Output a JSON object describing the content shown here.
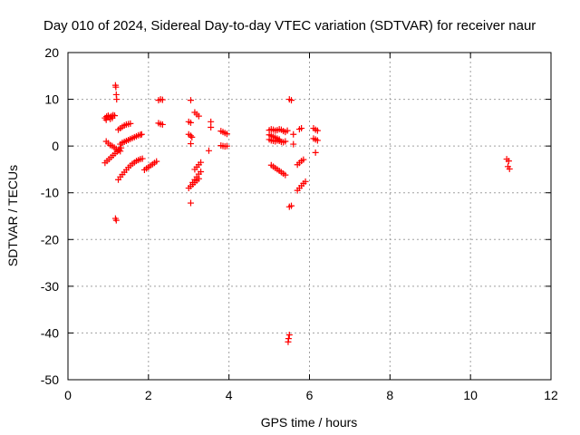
{
  "chart_data": {
    "type": "scatter",
    "title": "Day 010 of 2024, Sidereal Day-to-day VTEC variation (SDTVAR) for receiver naur",
    "xlabel": "GPS time / hours",
    "ylabel": "SDTVAR / TECUs",
    "xlim": [
      0,
      12
    ],
    "ylim": [
      -50,
      20
    ],
    "xticks": [
      0,
      2,
      4,
      6,
      8,
      10,
      12
    ],
    "yticks": [
      -50,
      -40,
      -30,
      -20,
      -10,
      0,
      10,
      20
    ],
    "grid": true,
    "marker": "+",
    "marker_color": "#ff0000",
    "series": [
      {
        "name": "SDTVAR",
        "points": [
          [
            0.92,
            6.0
          ],
          [
            0.96,
            6.3
          ],
          [
            1.0,
            6.5
          ],
          [
            1.04,
            6.2
          ],
          [
            1.08,
            6.4
          ],
          [
            1.12,
            6.6
          ],
          [
            1.16,
            6.5
          ],
          [
            0.95,
            5.6
          ],
          [
            1.05,
            5.8
          ],
          [
            1.1,
            6.0
          ],
          [
            1.18,
            13.0
          ],
          [
            1.19,
            12.6
          ],
          [
            1.2,
            11.0
          ],
          [
            1.21,
            10.0
          ],
          [
            0.95,
            1.0
          ],
          [
            1.0,
            0.6
          ],
          [
            1.05,
            0.2
          ],
          [
            1.1,
            0.0
          ],
          [
            1.15,
            -0.3
          ],
          [
            1.2,
            -0.6
          ],
          [
            1.25,
            -0.9
          ],
          [
            1.3,
            -1.1
          ],
          [
            0.92,
            -3.6
          ],
          [
            0.97,
            -3.2
          ],
          [
            1.02,
            -2.8
          ],
          [
            1.07,
            -2.4
          ],
          [
            1.12,
            -2.0
          ],
          [
            1.17,
            -1.6
          ],
          [
            1.22,
            -1.2
          ],
          [
            1.27,
            -0.8
          ],
          [
            1.32,
            -0.4
          ],
          [
            1.25,
            3.5
          ],
          [
            1.3,
            3.8
          ],
          [
            1.35,
            4.1
          ],
          [
            1.4,
            4.4
          ],
          [
            1.45,
            4.6
          ],
          [
            1.5,
            4.7
          ],
          [
            1.55,
            4.8
          ],
          [
            1.3,
            0.4
          ],
          [
            1.35,
            0.7
          ],
          [
            1.4,
            0.9
          ],
          [
            1.45,
            1.1
          ],
          [
            1.5,
            1.3
          ],
          [
            1.55,
            1.5
          ],
          [
            1.6,
            1.7
          ],
          [
            1.65,
            1.9
          ],
          [
            1.7,
            2.1
          ],
          [
            1.75,
            2.3
          ],
          [
            1.8,
            2.4
          ],
          [
            1.83,
            2.5
          ],
          [
            1.25,
            -7.2
          ],
          [
            1.3,
            -6.6
          ],
          [
            1.35,
            -6.1
          ],
          [
            1.4,
            -5.6
          ],
          [
            1.45,
            -5.1
          ],
          [
            1.5,
            -4.6
          ],
          [
            1.55,
            -4.2
          ],
          [
            1.6,
            -3.8
          ],
          [
            1.65,
            -3.5
          ],
          [
            1.7,
            -3.2
          ],
          [
            1.75,
            -3.0
          ],
          [
            1.8,
            -2.8
          ],
          [
            1.85,
            -2.7
          ],
          [
            1.18,
            -15.5
          ],
          [
            1.2,
            -15.9
          ],
          [
            1.9,
            -5.1
          ],
          [
            1.95,
            -4.8
          ],
          [
            2.0,
            -4.5
          ],
          [
            2.05,
            -4.2
          ],
          [
            2.1,
            -3.9
          ],
          [
            2.15,
            -3.6
          ],
          [
            2.2,
            -3.3
          ],
          [
            2.25,
            9.8
          ],
          [
            2.3,
            10.0
          ],
          [
            2.35,
            9.9
          ],
          [
            2.25,
            4.9
          ],
          [
            2.3,
            4.7
          ],
          [
            2.35,
            4.6
          ],
          [
            3.05,
            9.8
          ],
          [
            3.0,
            5.2
          ],
          [
            3.05,
            5.0
          ],
          [
            3.0,
            2.5
          ],
          [
            3.05,
            2.2
          ],
          [
            3.08,
            1.9
          ],
          [
            3.05,
            0.5
          ],
          [
            3.15,
            7.2
          ],
          [
            3.2,
            6.8
          ],
          [
            3.25,
            6.4
          ],
          [
            3.1,
            -7.8
          ],
          [
            3.15,
            -7.2
          ],
          [
            3.2,
            -6.6
          ],
          [
            3.25,
            -6.0
          ],
          [
            3.3,
            -5.5
          ],
          [
            3.0,
            -9.0
          ],
          [
            3.05,
            -8.6
          ],
          [
            3.1,
            -8.2
          ],
          [
            3.15,
            -7.8
          ],
          [
            3.2,
            -7.4
          ],
          [
            3.25,
            -7.0
          ],
          [
            3.15,
            -5.0
          ],
          [
            3.2,
            -4.5
          ],
          [
            3.25,
            -4.0
          ],
          [
            3.3,
            -3.5
          ],
          [
            3.05,
            -12.2
          ],
          [
            3.55,
            5.2
          ],
          [
            3.55,
            4.0
          ],
          [
            3.5,
            -1.0
          ],
          [
            3.8,
            3.2
          ],
          [
            3.85,
            3.0
          ],
          [
            3.9,
            2.8
          ],
          [
            3.95,
            2.6
          ],
          [
            3.8,
            0.1
          ],
          [
            3.85,
            0.0
          ],
          [
            3.9,
            -0.1
          ],
          [
            3.95,
            0.0
          ],
          [
            5.0,
            3.4
          ],
          [
            5.05,
            3.6
          ],
          [
            5.1,
            3.5
          ],
          [
            5.15,
            3.3
          ],
          [
            5.2,
            3.4
          ],
          [
            5.25,
            3.6
          ],
          [
            5.3,
            3.5
          ],
          [
            5.35,
            3.2
          ],
          [
            5.4,
            3.0
          ],
          [
            5.45,
            3.3
          ],
          [
            5.0,
            2.4
          ],
          [
            5.05,
            2.2
          ],
          [
            5.1,
            2.0
          ],
          [
            5.15,
            1.8
          ],
          [
            5.2,
            1.6
          ],
          [
            5.25,
            1.4
          ],
          [
            5.0,
            1.4
          ],
          [
            5.05,
            1.2
          ],
          [
            5.1,
            1.1
          ],
          [
            5.15,
            1.0
          ],
          [
            5.2,
            1.2
          ],
          [
            5.25,
            1.1
          ],
          [
            5.3,
            0.9
          ],
          [
            5.35,
            0.8
          ],
          [
            5.4,
            1.0
          ],
          [
            5.05,
            -4.1
          ],
          [
            5.1,
            -4.4
          ],
          [
            5.15,
            -4.7
          ],
          [
            5.2,
            -5.0
          ],
          [
            5.25,
            -5.3
          ],
          [
            5.3,
            -5.6
          ],
          [
            5.35,
            -5.9
          ],
          [
            5.4,
            -6.2
          ],
          [
            5.5,
            10.0
          ],
          [
            5.55,
            9.8
          ],
          [
            5.6,
            2.5
          ],
          [
            5.6,
            0.4
          ],
          [
            5.75,
            3.6
          ],
          [
            5.8,
            3.8
          ],
          [
            5.7,
            -4.0
          ],
          [
            5.75,
            -3.6
          ],
          [
            5.8,
            -3.2
          ],
          [
            5.85,
            -2.9
          ],
          [
            5.7,
            -9.5
          ],
          [
            5.75,
            -9.0
          ],
          [
            5.8,
            -8.5
          ],
          [
            5.85,
            -8.0
          ],
          [
            5.9,
            -7.6
          ],
          [
            5.5,
            -13.0
          ],
          [
            5.55,
            -12.8
          ],
          [
            5.5,
            -40.4
          ],
          [
            5.48,
            -41.2
          ],
          [
            5.47,
            -41.9
          ],
          [
            6.1,
            3.8
          ],
          [
            6.15,
            3.5
          ],
          [
            6.2,
            3.3
          ],
          [
            6.1,
            1.6
          ],
          [
            6.15,
            1.4
          ],
          [
            6.2,
            1.2
          ],
          [
            6.15,
            -1.4
          ],
          [
            10.9,
            -2.8
          ],
          [
            10.95,
            -3.2
          ],
          [
            10.93,
            -4.4
          ],
          [
            10.97,
            -4.9
          ]
        ]
      }
    ]
  }
}
